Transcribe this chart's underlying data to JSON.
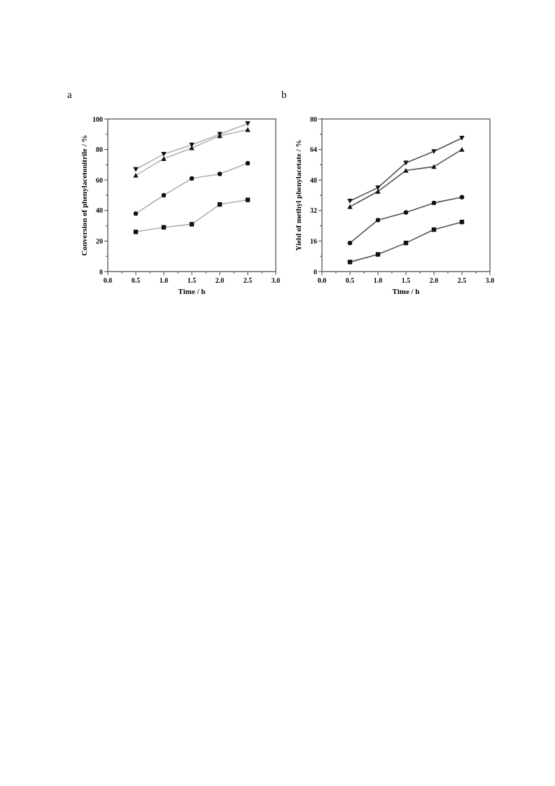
{
  "chart_data": [
    {
      "type": "line",
      "title": "a",
      "xlabel": "Time / h",
      "ylabel": "Conversion of phenylacetonitrile / %",
      "x": [
        0.5,
        1.0,
        1.5,
        2.0,
        2.5
      ],
      "xlim": [
        0,
        3
      ],
      "ylim": [
        0,
        100
      ],
      "xticks": [
        {
          "value": 0,
          "label": "0.0"
        },
        {
          "value": 0.25,
          "label": null
        },
        {
          "value": 0.5,
          "label": "0.5"
        },
        {
          "value": 0.75,
          "label": null
        },
        {
          "value": 1,
          "label": "1.0"
        },
        {
          "value": 1.25,
          "label": null
        },
        {
          "value": 1.5,
          "label": "1.5"
        },
        {
          "value": 1.75,
          "label": null
        },
        {
          "value": 2,
          "label": "2.0"
        },
        {
          "value": 2.25,
          "label": null
        },
        {
          "value": 2.5,
          "label": "2.5"
        },
        {
          "value": 2.75,
          "label": null
        },
        {
          "value": 3,
          "label": "3.0"
        }
      ],
      "yticks": [
        0,
        {
          "value": 10,
          "label": null
        },
        20,
        {
          "value": 30,
          "label": null
        },
        40,
        {
          "value": 50,
          "label": null
        },
        60,
        {
          "value": 70,
          "label": null
        },
        80,
        {
          "value": 90,
          "label": null
        },
        100
      ],
      "series": [
        {
          "color": "#b0b0b0",
          "marker": "triangle-down",
          "values": [
            67,
            77,
            83,
            90,
            97
          ]
        },
        {
          "color": "#b0b0b0",
          "marker": "triangle",
          "values": [
            63,
            74,
            81,
            89,
            93
          ]
        },
        {
          "color": "#b0b0b0",
          "marker": "circle",
          "values": [
            38,
            50,
            61,
            64,
            71
          ]
        },
        {
          "color": "#b0b0b0",
          "marker": "square",
          "values": [
            26,
            29,
            31,
            44,
            47
          ]
        }
      ]
    },
    {
      "type": "line",
      "title": "b",
      "xlabel": "Time / h",
      "ylabel": "Yield of methyl phenylacetate / %",
      "x": [
        0.5,
        1.0,
        1.5,
        2.0,
        2.5
      ],
      "xlim": [
        0,
        3
      ],
      "ylim": [
        0,
        80
      ],
      "xticks": [
        {
          "value": 0,
          "label": "0.0"
        },
        {
          "value": 0.25,
          "label": null
        },
        {
          "value": 0.5,
          "label": "0.5"
        },
        {
          "value": 0.75,
          "label": null
        },
        {
          "value": 1,
          "label": "1.0"
        },
        {
          "value": 1.25,
          "label": null
        },
        {
          "value": 1.5,
          "label": "1.5"
        },
        {
          "value": 1.75,
          "label": null
        },
        {
          "value": 2,
          "label": "2.0"
        },
        {
          "value": 2.25,
          "label": null
        },
        {
          "value": 2.5,
          "label": "2.5"
        },
        {
          "value": 2.75,
          "label": null
        },
        {
          "value": 3,
          "label": "3.0"
        }
      ],
      "yticks": [
        0,
        {
          "value": 8,
          "label": null
        },
        16,
        {
          "value": 24,
          "label": null
        },
        32,
        {
          "value": 40,
          "label": null
        },
        48,
        {
          "value": 56,
          "label": null
        },
        64,
        {
          "value": 72,
          "label": null
        },
        80
      ],
      "series": [
        {
          "color": "#505050",
          "marker": "triangle-down",
          "values": [
            37,
            44,
            57,
            63,
            70
          ]
        },
        {
          "color": "#505050",
          "marker": "triangle",
          "values": [
            34,
            42,
            53,
            55,
            64
          ]
        },
        {
          "color": "#505050",
          "marker": "circle",
          "values": [
            15,
            27,
            31,
            36,
            39
          ]
        },
        {
          "color": "#505050",
          "marker": "square",
          "values": [
            5,
            9,
            15,
            22,
            26
          ]
        }
      ]
    }
  ]
}
